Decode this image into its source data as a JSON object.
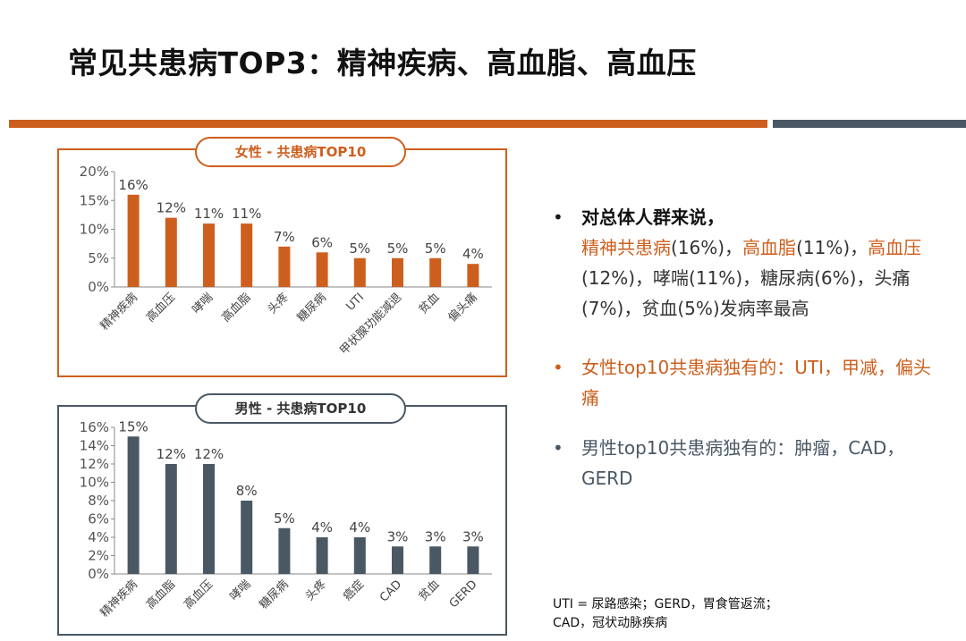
{
  "title": "常见共患病TOP3：精神疾病、高血脂、高血压",
  "colors": {
    "female": "#cd5f1e",
    "male": "#4a5864",
    "band_orange": "#cd5f1e",
    "band_slate": "#4a5864"
  },
  "chart_data": [
    {
      "type": "bar",
      "title": "女性 - 共患病TOP10",
      "categories": [
        "精神疾病",
        "高血压",
        "哮喘",
        "高血脂",
        "头疼",
        "糖尿病",
        "UTI",
        "甲状腺功能减退",
        "贫血",
        "偏头痛"
      ],
      "values": [
        16,
        12,
        11,
        11,
        7,
        6,
        5,
        5,
        5,
        4
      ],
      "value_labels": [
        "16%",
        "12%",
        "11%",
        "11%",
        "7%",
        "6%",
        "5%",
        "5%",
        "5%",
        "4%"
      ],
      "ylim": [
        0,
        20
      ],
      "yticks": [
        "0%",
        "5%",
        "10%",
        "15%",
        "20%"
      ],
      "color": "#cd5f1e",
      "grid": false
    },
    {
      "type": "bar",
      "title": "男性 - 共患病TOP10",
      "categories": [
        "精神疾病",
        "高血脂",
        "高血压",
        "哮喘",
        "糖尿病",
        "头疼",
        "癌症",
        "CAD",
        "贫血",
        "GERD"
      ],
      "values": [
        15,
        12,
        12,
        8,
        5,
        4,
        4,
        3,
        3,
        3
      ],
      "value_labels": [
        "15%",
        "12%",
        "12%",
        "8%",
        "5%",
        "4%",
        "4%",
        "3%",
        "3%",
        "3%"
      ],
      "ylim": [
        0,
        16
      ],
      "yticks": [
        "0%",
        "2%",
        "4%",
        "6%",
        "8%",
        "10%",
        "12%",
        "14%",
        "16%"
      ],
      "color": "#4a5864",
      "grid": false
    }
  ],
  "notes": {
    "b1_lead": "对总体人群来说，",
    "b1_parts": [
      {
        "text": "精神共患病",
        "hl": true
      },
      {
        "text": "(16%)，",
        "hl": false
      },
      {
        "text": "高血脂",
        "hl": true
      },
      {
        "text": "(11%)，",
        "hl": false
      },
      {
        "text": "高血压",
        "hl": true
      },
      {
        "text": "(12%)，哮喘(11%)，糖尿病(6%)，头痛(7%)，贫血(5%)发病率最高",
        "hl": false
      }
    ],
    "b2": "女性top10共患病独有的：UTI，甲减，偏头痛",
    "b3": "男性top10共患病独有的：肿瘤，CAD，GERD",
    "bullet_glyph": "•"
  },
  "footnote": {
    "line1": "UTI = 尿路感染；GERD，胃食管返流；",
    "line2": "CAD，冠状动脉疾病"
  }
}
